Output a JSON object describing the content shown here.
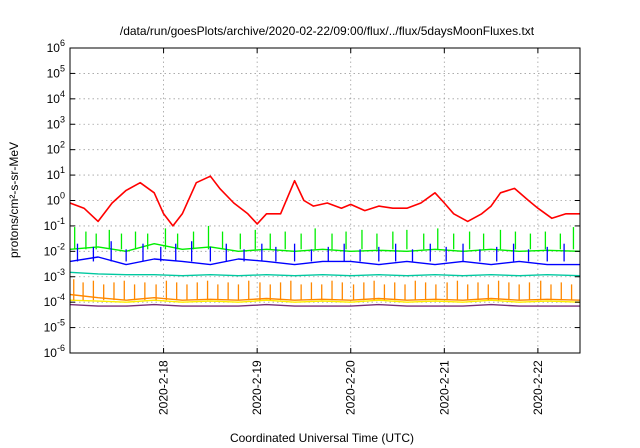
{
  "chart_data": {
    "type": "line",
    "title": "/data/run/goesPlots/archive/2020-02-22/09:00/flux/../flux/5daysMoonFluxes.txt",
    "xlabel": "Coordinated Universal Time (UTC)",
    "ylabel": "protons/cm²-s-sr-MeV",
    "yscale": "log",
    "ylim": [
      1e-06,
      1000000.0
    ],
    "xlim": [
      0,
      5.45
    ],
    "grid": true,
    "y_ticks": [
      {
        "base": "10",
        "exp": "-6"
      },
      {
        "base": "10",
        "exp": "-5"
      },
      {
        "base": "10",
        "exp": "-4"
      },
      {
        "base": "10",
        "exp": "-3"
      },
      {
        "base": "10",
        "exp": "-2"
      },
      {
        "base": "10",
        "exp": "-1"
      },
      {
        "base": "10",
        "exp": "0"
      },
      {
        "base": "10",
        "exp": "1"
      },
      {
        "base": "10",
        "exp": "2"
      },
      {
        "base": "10",
        "exp": "3"
      },
      {
        "base": "10",
        "exp": "4"
      },
      {
        "base": "10",
        "exp": "5"
      },
      {
        "base": "10",
        "exp": "6"
      }
    ],
    "x_ticks": [
      {
        "label": "2020-2-18",
        "x": 1.0
      },
      {
        "label": "2020-2-19",
        "x": 2.0
      },
      {
        "label": "2020-2-20",
        "x": 3.0
      },
      {
        "label": "2020-2-21",
        "x": 4.0
      },
      {
        "label": "2020-2-22",
        "x": 5.0
      }
    ],
    "series": [
      {
        "color": "#ff0000",
        "x": [
          0,
          0.15,
          0.3,
          0.45,
          0.6,
          0.75,
          0.9,
          1.0,
          1.1,
          1.2,
          1.35,
          1.5,
          1.6,
          1.75,
          1.9,
          2.0,
          2.1,
          2.25,
          2.4,
          2.5,
          2.6,
          2.75,
          2.9,
          3.0,
          3.15,
          3.3,
          3.45,
          3.6,
          3.75,
          3.9,
          4.0,
          4.1,
          4.25,
          4.4,
          4.5,
          4.6,
          4.75,
          4.9,
          5.0,
          5.15,
          5.3,
          5.45
        ],
        "y": [
          0.8,
          0.5,
          0.15,
          0.8,
          2.5,
          5,
          2,
          0.3,
          0.1,
          0.3,
          5,
          9,
          3,
          0.8,
          0.3,
          0.12,
          0.3,
          0.3,
          6,
          1.0,
          0.6,
          0.8,
          0.5,
          0.7,
          0.4,
          0.6,
          0.5,
          0.5,
          0.8,
          2,
          0.8,
          0.3,
          0.15,
          0.3,
          0.6,
          2,
          3,
          1,
          0.5,
          0.2,
          0.3,
          0.3
        ]
      },
      {
        "color": "#00ee00",
        "x": [
          0,
          0.3,
          0.6,
          0.9,
          1.2,
          1.5,
          1.8,
          2.1,
          2.4,
          2.7,
          3.0,
          3.3,
          3.6,
          3.9,
          4.2,
          4.5,
          4.8,
          5.1,
          5.45
        ],
        "y": [
          0.012,
          0.015,
          0.01,
          0.02,
          0.012,
          0.015,
          0.01,
          0.012,
          0.01,
          0.012,
          0.01,
          0.011,
          0.01,
          0.012,
          0.01,
          0.012,
          0.01,
          0.011,
          0.01
        ]
      },
      {
        "color": "#0000ff",
        "x": [
          0,
          0.3,
          0.6,
          0.9,
          1.2,
          1.5,
          1.8,
          2.1,
          2.4,
          2.7,
          3.0,
          3.3,
          3.6,
          3.9,
          4.2,
          4.5,
          4.8,
          5.1,
          5.45
        ],
        "y": [
          0.004,
          0.006,
          0.003,
          0.005,
          0.004,
          0.003,
          0.005,
          0.004,
          0.003,
          0.004,
          0.004,
          0.003,
          0.004,
          0.003,
          0.004,
          0.003,
          0.004,
          0.003,
          0.003
        ]
      },
      {
        "color": "#00c8a0",
        "x": [
          0,
          0.3,
          0.6,
          0.9,
          1.2,
          1.5,
          1.8,
          2.1,
          2.4,
          2.7,
          3.0,
          3.3,
          3.6,
          3.9,
          4.2,
          4.5,
          4.8,
          5.1,
          5.45
        ],
        "y": [
          0.0015,
          0.0013,
          0.0012,
          0.0012,
          0.0011,
          0.0012,
          0.0011,
          0.0012,
          0.0011,
          0.0012,
          0.0011,
          0.0012,
          0.0011,
          0.0012,
          0.0011,
          0.0012,
          0.0011,
          0.0012,
          0.0011
        ]
      },
      {
        "color": "#ffee00",
        "x": [
          0,
          0.3,
          0.6,
          0.9,
          1.2,
          1.5,
          1.8,
          2.1,
          2.4,
          2.7,
          3.0,
          3.3,
          3.6,
          3.9,
          4.2,
          4.5,
          4.8,
          5.1,
          5.45
        ],
        "y": [
          0.00012,
          0.00011,
          0.0001,
          0.00012,
          0.0001,
          0.00011,
          0.0001,
          0.00012,
          0.0001,
          0.00011,
          0.0001,
          0.00012,
          0.0001,
          0.00011,
          0.0001,
          0.00012,
          0.0001,
          0.00011,
          0.0001
        ]
      },
      {
        "color": "#ff8800",
        "x": [
          0,
          0.3,
          0.6,
          0.9,
          1.2,
          1.5,
          1.8,
          2.1,
          2.4,
          2.7,
          3.0,
          3.3,
          3.6,
          3.9,
          4.2,
          4.5,
          4.8,
          5.1,
          5.45
        ],
        "y": [
          0.0002,
          0.00015,
          0.00012,
          0.00015,
          0.00012,
          0.00013,
          0.00012,
          0.00014,
          0.00012,
          0.00013,
          0.00012,
          0.00014,
          0.00012,
          0.00013,
          0.00012,
          0.00014,
          0.00012,
          0.00013,
          0.00012
        ]
      },
      {
        "color": "#7a2d7a",
        "x": [
          0,
          0.3,
          0.6,
          0.9,
          1.2,
          1.5,
          1.8,
          2.1,
          2.4,
          2.7,
          3.0,
          3.3,
          3.6,
          3.9,
          4.2,
          4.5,
          4.8,
          5.1,
          5.45
        ],
        "y": [
          8e-05,
          7e-05,
          7e-05,
          8e-05,
          7e-05,
          7e-05,
          7e-05,
          8e-05,
          7e-05,
          7e-05,
          7e-05,
          8e-05,
          7e-05,
          7e-05,
          7e-05,
          8e-05,
          7e-05,
          7e-05,
          7e-05
        ]
      }
    ],
    "spikes": [
      {
        "color": "#00ee00",
        "x": [
          0.05,
          0.17,
          0.28,
          0.42,
          0.55,
          0.7,
          0.83,
          1.02,
          1.15,
          1.32,
          1.48,
          1.63,
          1.82,
          1.98,
          2.14,
          2.3,
          2.47,
          2.62,
          2.8,
          2.95,
          3.12,
          3.28,
          3.45,
          3.6,
          3.78,
          3.93,
          4.1,
          4.27,
          4.42,
          4.6,
          4.76,
          4.92,
          5.08,
          5.24,
          5.38
        ],
        "y": [
          0.09,
          0.06,
          0.05,
          0.07,
          0.05,
          0.06,
          0.05,
          0.08,
          0.05,
          0.06,
          0.1,
          0.06,
          0.05,
          0.07,
          0.05,
          0.06,
          0.05,
          0.08,
          0.05,
          0.06,
          0.07,
          0.05,
          0.06,
          0.07,
          0.05,
          0.08,
          0.05,
          0.06,
          0.05,
          0.07,
          0.06,
          0.05,
          0.06,
          0.05,
          0.09
        ]
      },
      {
        "color": "#0000ff",
        "x": [
          0.08,
          0.25,
          0.44,
          0.6,
          0.78,
          0.97,
          1.13,
          1.3,
          1.5,
          1.67,
          1.86,
          2.05,
          2.2,
          2.4,
          2.58,
          2.76,
          2.93,
          3.1,
          3.3,
          3.48,
          3.66,
          3.85,
          4.02,
          4.2,
          4.38,
          4.56,
          4.74,
          4.9,
          5.1,
          5.28
        ],
        "y": [
          0.02,
          0.015,
          0.025,
          0.012,
          0.02,
          0.015,
          0.02,
          0.025,
          0.015,
          0.02,
          0.012,
          0.02,
          0.015,
          0.02,
          0.012,
          0.015,
          0.02,
          0.012,
          0.015,
          0.02,
          0.012,
          0.02,
          0.015,
          0.02,
          0.012,
          0.015,
          0.02,
          0.012,
          0.015,
          0.02
        ]
      },
      {
        "color": "#ff8800",
        "x": [
          0.04,
          0.14,
          0.25,
          0.36,
          0.47,
          0.58,
          0.69,
          0.8,
          0.92,
          1.03,
          1.14,
          1.25,
          1.36,
          1.47,
          1.58,
          1.69,
          1.8,
          1.91,
          2.03,
          2.14,
          2.25,
          2.36,
          2.47,
          2.58,
          2.69,
          2.8,
          2.91,
          3.03,
          3.14,
          3.25,
          3.36,
          3.47,
          3.58,
          3.69,
          3.8,
          3.91,
          4.03,
          4.14,
          4.25,
          4.36,
          4.47,
          4.58,
          4.69,
          4.8,
          4.91,
          5.03,
          5.14,
          5.25,
          5.36
        ],
        "y": [
          0.0008,
          0.0006,
          0.0007,
          0.0005,
          0.0006,
          0.0007,
          0.0005,
          0.0006,
          0.0005,
          0.0007,
          0.0006,
          0.0005,
          0.0006,
          0.0007,
          0.0005,
          0.0006,
          0.0005,
          0.0007,
          0.0006,
          0.0005,
          0.0006,
          0.0007,
          0.0005,
          0.0006,
          0.0005,
          0.0007,
          0.0006,
          0.0005,
          0.0006,
          0.0007,
          0.0005,
          0.0006,
          0.0005,
          0.0007,
          0.0006,
          0.0005,
          0.0006,
          0.0007,
          0.0005,
          0.0006,
          0.0005,
          0.0007,
          0.0006,
          0.0005,
          0.0006,
          0.0007,
          0.0005,
          0.0006,
          0.0005
        ]
      }
    ]
  }
}
